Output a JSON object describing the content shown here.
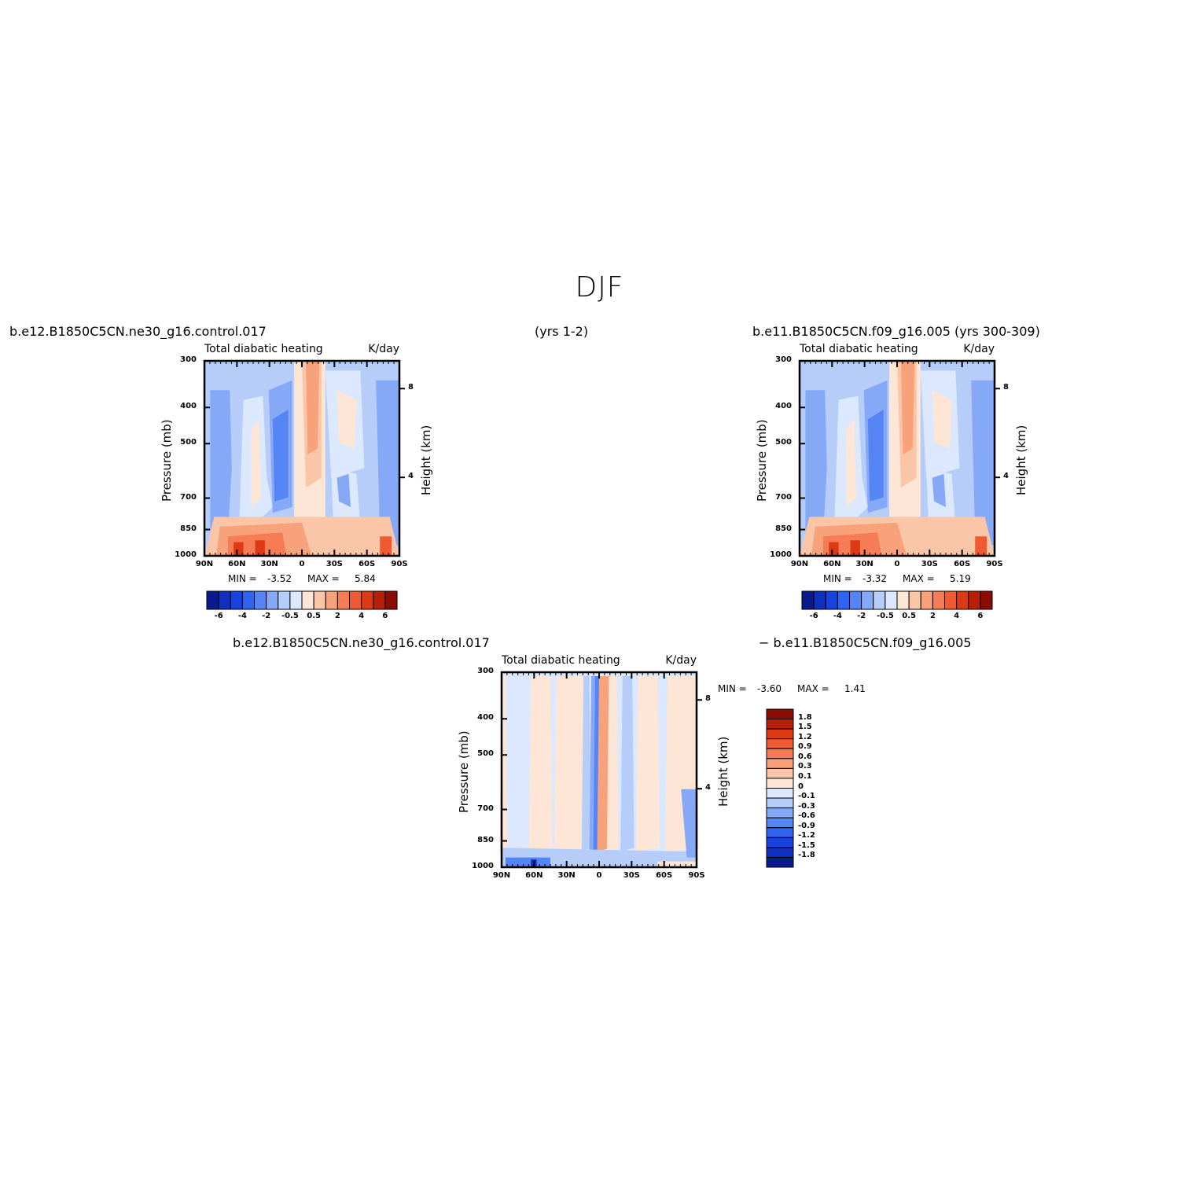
{
  "figure": {
    "title": "DJF",
    "case1_label": "b.e12.B1850C5CN.ne30_g16.control.017",
    "case1_years": "(yrs 1-2)",
    "case2_label": "b.e11.B1850C5CN.f09_g16.005 (yrs 300-309)",
    "diff_label_left": "b.e12.B1850C5CN.ne30_g16.control.017",
    "diff_label_right": "−  b.e11.B1850C5CN.f09_g16.005"
  },
  "colors": {
    "levels": [
      "#0a1a8c",
      "#0f2fbf",
      "#1744e0",
      "#2f63f2",
      "#5585f5",
      "#85a8f7",
      "#b6cdfa",
      "#dbe8fd",
      "#fde6d6",
      "#fbc6a8",
      "#f8a27c",
      "#f57c54",
      "#ef5a32",
      "#dd3a14",
      "#b81f08",
      "#8a0c02"
    ]
  },
  "chart_data": [
    {
      "type": "heatmap",
      "name": "control",
      "title": "Total diabatic heating",
      "units": "K/day",
      "ylabel": "Pressure (mb)",
      "ylabel_right": "Height (km)",
      "x_ticks": [
        "90N",
        "60N",
        "30N",
        "0",
        "30S",
        "60S",
        "90S"
      ],
      "y_ticks": [
        300,
        400,
        500,
        700,
        850,
        1000
      ],
      "right_ticks": [
        8,
        4
      ],
      "stats": {
        "min_label": "MIN =",
        "min": "-3.52",
        "max_label": "MAX =",
        "max": "5.84"
      },
      "colorbar_labels": [
        "-6",
        "-4",
        "-2",
        "-0.5",
        "0.5",
        "2",
        "4",
        "6"
      ]
    },
    {
      "type": "heatmap",
      "name": "reference",
      "title": "Total diabatic heating",
      "units": "K/day",
      "ylabel": "Pressure (mb)",
      "ylabel_right": "Height (km)",
      "x_ticks": [
        "90N",
        "60N",
        "30N",
        "0",
        "30S",
        "60S",
        "90S"
      ],
      "y_ticks": [
        300,
        400,
        500,
        700,
        850,
        1000
      ],
      "right_ticks": [
        8,
        4
      ],
      "stats": {
        "min_label": "MIN =",
        "min": "-3.32",
        "max_label": "MAX =",
        "max": "5.19"
      },
      "colorbar_labels": [
        "-6",
        "-4",
        "-2",
        "-0.5",
        "0.5",
        "2",
        "4",
        "6"
      ]
    },
    {
      "type": "heatmap",
      "name": "difference",
      "title": "Total diabatic heating",
      "units": "K/day",
      "ylabel": "Pressure (mb)",
      "ylabel_right": "Height (km)",
      "x_ticks": [
        "90N",
        "60N",
        "30N",
        "0",
        "30S",
        "60S",
        "90S"
      ],
      "y_ticks": [
        300,
        400,
        500,
        700,
        850,
        1000
      ],
      "right_ticks": [
        8,
        4
      ],
      "stats": {
        "min_label": "MIN =",
        "min": "-3.60",
        "max_label": "MAX =",
        "max": "1.41"
      },
      "colorbar_labels": [
        "1.8",
        "1.5",
        "1.2",
        "0.9",
        "0.6",
        "0.3",
        "0.1",
        "0",
        "-0.1",
        "-0.3",
        "-0.6",
        "-0.9",
        "-1.2",
        "-1.5",
        "-1.8"
      ]
    }
  ]
}
